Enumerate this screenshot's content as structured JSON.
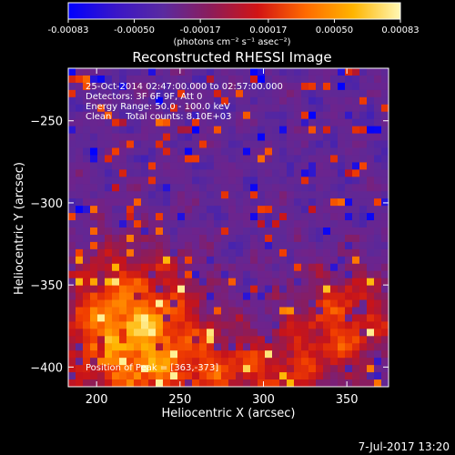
{
  "chart_data": {
    "type": "heatmap",
    "title": "Reconstructed RHESSI Image",
    "xlabel": "Heliocentric X (arcsec)",
    "ylabel": "Heliocentric Y (arcsec)",
    "xlim": [
      183,
      375
    ],
    "ylim": [
      -412,
      -218
    ],
    "xticks": [
      200,
      250,
      300,
      350
    ],
    "yticks": [
      -250,
      -300,
      -350,
      -400
    ],
    "colorbar": {
      "ticks": [
        "-0.00083",
        "-0.00050",
        "-0.00017",
        "0.00017",
        "0.00050",
        "0.00083"
      ],
      "tick_values": [
        -0.00083,
        -0.0005,
        -0.00017,
        0.00017,
        0.0005,
        0.00083
      ],
      "unit_label": "(photons cm⁻² s⁻¹ asec⁻²)",
      "colors": [
        "#0000ff",
        "#3a16c8",
        "#5a2aa0",
        "#8c1c5a",
        "#d21414",
        "#ff6a00",
        "#ffb400",
        "#fff8b4"
      ]
    },
    "annotations": [
      "25-Oct-2014 02:47:00.000 to 02:57:00.000",
      "Detectors: 3F 6F 9F, Att 0",
      "Energy Range: 50.0 - 100.0 keV",
      "Clean     Total counts: 8.10E+03"
    ],
    "peak_text": "Position of Peak = [363,-373]",
    "peak_position": [
      363,
      -373
    ],
    "grid": false
  },
  "footer": {
    "date": "7-Jul-2017 13:20"
  }
}
